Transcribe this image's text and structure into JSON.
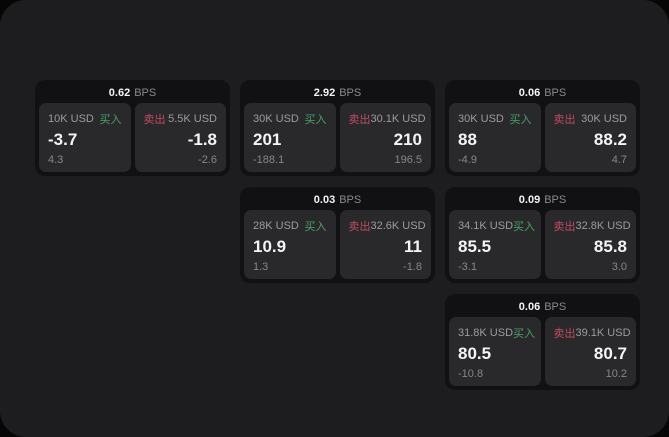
{
  "unit": "BPS",
  "buy_label": "买入",
  "sell_label": "卖出",
  "colors": {
    "buy": "#4ba06a",
    "sell": "#bf4b60",
    "panel_bg": "#29292b",
    "card_bg": "#111113",
    "screen_bg": "#1d1d1f"
  },
  "cards": [
    {
      "bps": "0.62",
      "buy": {
        "amount": "10K USD",
        "value": "-3.7",
        "sub": "4.3"
      },
      "sell": {
        "amount": "5.5K USD",
        "value": "-1.8",
        "sub": "-2.6"
      }
    },
    {
      "bps": "2.92",
      "buy": {
        "amount": "30K USD",
        "value": "201",
        "sub": "-188.1"
      },
      "sell": {
        "amount": "30.1K USD",
        "value": "210",
        "sub": "196.5"
      }
    },
    {
      "bps": "0.06",
      "buy": {
        "amount": "30K USD",
        "value": "88",
        "sub": "-4.9"
      },
      "sell": {
        "amount": "30K USD",
        "value": "88.2",
        "sub": "4.7"
      }
    },
    {
      "bps": "0.03",
      "buy": {
        "amount": "28K USD",
        "value": "10.9",
        "sub": "1.3"
      },
      "sell": {
        "amount": "32.6K USD",
        "value": "11",
        "sub": "-1.8"
      }
    },
    {
      "bps": "0.09",
      "buy": {
        "amount": "34.1K USD",
        "value": "85.5",
        "sub": "-3.1"
      },
      "sell": {
        "amount": "32.8K USD",
        "value": "85.8",
        "sub": "3.0"
      }
    },
    {
      "bps": "0.06",
      "buy": {
        "amount": "31.8K USD",
        "value": "80.5",
        "sub": "-10.8"
      },
      "sell": {
        "amount": "39.1K USD",
        "value": "80.7",
        "sub": "10.2"
      }
    }
  ]
}
